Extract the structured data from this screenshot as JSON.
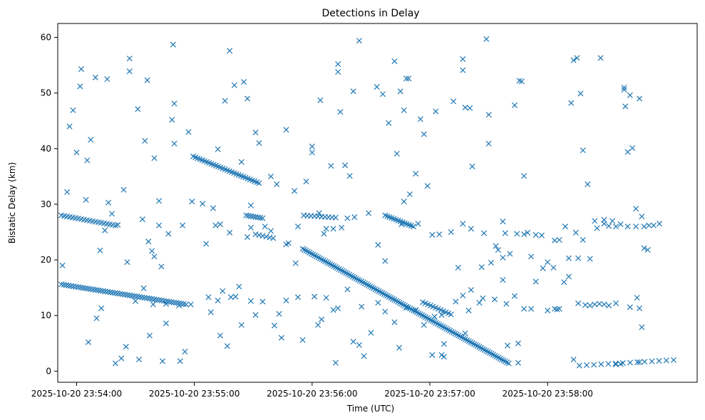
{
  "chart_data": {
    "type": "scatter",
    "title": "Detections in Delay",
    "xlabel": "Time (UTC)",
    "ylabel": "Bistatic Delay (km)",
    "marker": "x",
    "color": "#1f77b4",
    "grid": false,
    "legend": "none",
    "xlim": [
      -0.16,
      5.27
    ],
    "ylim": [
      -2,
      62.5
    ],
    "x_ticks": [
      {
        "value": 0,
        "label": "2025-10-20 23:54:00"
      },
      {
        "value": 1,
        "label": "2025-10-20 23:55:00"
      },
      {
        "value": 2,
        "label": "2025-10-20 23:56:00"
      },
      {
        "value": 3,
        "label": "2025-10-20 23:57:00"
      },
      {
        "value": 4,
        "label": "2025-10-20 23:58:00"
      }
    ],
    "y_ticks": [
      0,
      10,
      20,
      30,
      40,
      50,
      60
    ],
    "x_unit_note": "minutes after 2025-10-20 23:54:00 UTC",
    "tracks": [
      {
        "x0": -0.13,
        "y0": 15.6,
        "x1": 0.93,
        "y1": 12.0,
        "n": 52
      },
      {
        "x0": -0.13,
        "y0": 28.0,
        "x1": 0.33,
        "y1": 26.2,
        "n": 20
      },
      {
        "x0": 0.99,
        "y0": 38.6,
        "x1": 1.55,
        "y1": 33.8,
        "n": 30
      },
      {
        "x0": 1.92,
        "y0": 22.0,
        "x1": 3.67,
        "y1": 1.4,
        "n": 120
      },
      {
        "x0": 2.62,
        "y0": 28.0,
        "x1": 2.86,
        "y1": 26.0,
        "n": 14
      },
      {
        "x0": 1.44,
        "y0": 28.0,
        "x1": 1.58,
        "y1": 27.5,
        "n": 8
      },
      {
        "x0": 1.52,
        "y0": 24.6,
        "x1": 1.67,
        "y1": 23.9,
        "n": 6
      },
      {
        "x0": 2.94,
        "y0": 12.4,
        "x1": 3.18,
        "y1": 10.2,
        "n": 12
      },
      {
        "x0": 1.93,
        "y0": 28.0,
        "x1": 2.2,
        "y1": 27.6,
        "n": 10
      },
      {
        "x0": 4.27,
        "y0": 1.0,
        "x1": 5.07,
        "y1": 2.0,
        "n": 14
      }
    ],
    "scatter_points": [
      [
        -0.12,
        19.0
      ],
      [
        -0.08,
        32.2
      ],
      [
        -0.06,
        44.0
      ],
      [
        -0.03,
        46.9
      ],
      [
        0.0,
        39.3
      ],
      [
        0.03,
        51.2
      ],
      [
        0.04,
        54.3
      ],
      [
        0.08,
        30.8
      ],
      [
        0.09,
        37.9
      ],
      [
        0.12,
        41.6
      ],
      [
        0.16,
        52.8
      ],
      [
        0.2,
        21.7
      ],
      [
        0.24,
        25.3
      ],
      [
        0.26,
        52.5
      ],
      [
        0.27,
        30.3
      ],
      [
        0.3,
        28.3
      ],
      [
        0.35,
        26.3
      ],
      [
        0.4,
        32.6
      ],
      [
        0.43,
        19.6
      ],
      [
        0.45,
        56.2
      ],
      [
        0.45,
        53.9
      ],
      [
        0.52,
        47.1
      ],
      [
        0.58,
        41.4
      ],
      [
        0.6,
        52.3
      ],
      [
        0.61,
        23.3
      ],
      [
        0.62,
        6.4
      ],
      [
        0.64,
        21.6
      ],
      [
        0.66,
        38.3
      ],
      [
        0.7,
        30.6
      ],
      [
        0.72,
        18.8
      ],
      [
        0.76,
        8.6
      ],
      [
        0.81,
        45.2
      ],
      [
        0.82,
        58.7
      ],
      [
        0.83,
        48.1
      ],
      [
        0.83,
        40.9
      ],
      [
        0.9,
        26.2
      ],
      [
        0.92,
        3.5
      ],
      [
        0.95,
        43.0
      ],
      [
        0.98,
        30.5
      ],
      [
        1.07,
        30.1
      ],
      [
        1.1,
        22.9
      ],
      [
        1.12,
        13.3
      ],
      [
        1.16,
        29.3
      ],
      [
        1.18,
        26.2
      ],
      [
        1.2,
        39.9
      ],
      [
        1.26,
        48.6
      ],
      [
        1.3,
        57.6
      ],
      [
        1.34,
        51.4
      ],
      [
        1.35,
        13.4
      ],
      [
        1.4,
        37.6
      ],
      [
        1.42,
        52.0
      ],
      [
        1.45,
        49.0
      ],
      [
        1.48,
        29.8
      ],
      [
        1.52,
        42.9
      ],
      [
        1.55,
        41.0
      ],
      [
        1.6,
        26.0
      ],
      [
        1.65,
        35.0
      ],
      [
        1.7,
        33.6
      ],
      [
        1.74,
        6.0
      ],
      [
        1.78,
        43.4
      ],
      [
        1.8,
        23.0
      ],
      [
        1.85,
        32.4
      ],
      [
        1.88,
        26.0
      ],
      [
        1.95,
        34.1
      ],
      [
        2.0,
        40.4
      ],
      [
        2.0,
        39.3
      ],
      [
        2.07,
        48.7
      ],
      [
        2.12,
        25.6
      ],
      [
        2.16,
        36.9
      ],
      [
        2.18,
        11.0
      ],
      [
        2.22,
        55.2
      ],
      [
        2.22,
        53.8
      ],
      [
        2.24,
        46.6
      ],
      [
        2.28,
        37.0
      ],
      [
        2.32,
        35.1
      ],
      [
        2.35,
        50.3
      ],
      [
        2.4,
        59.4
      ],
      [
        2.48,
        28.4
      ],
      [
        2.55,
        51.1
      ],
      [
        2.6,
        49.8
      ],
      [
        2.65,
        44.6
      ],
      [
        2.7,
        55.7
      ],
      [
        2.72,
        39.1
      ],
      [
        2.75,
        50.3
      ],
      [
        2.78,
        46.9
      ],
      [
        2.8,
        52.6
      ],
      [
        2.82,
        52.6
      ],
      [
        2.88,
        35.5
      ],
      [
        2.92,
        45.3
      ],
      [
        2.95,
        42.6
      ],
      [
        2.98,
        33.3
      ],
      [
        3.05,
        46.7
      ],
      [
        3.12,
        4.9
      ],
      [
        3.2,
        48.5
      ],
      [
        3.28,
        56.1
      ],
      [
        3.28,
        54.1
      ],
      [
        3.3,
        47.4
      ],
      [
        3.34,
        47.3
      ],
      [
        3.36,
        36.8
      ],
      [
        3.48,
        59.7
      ],
      [
        3.5,
        46.1
      ],
      [
        3.5,
        40.9
      ],
      [
        3.56,
        22.5
      ],
      [
        3.62,
        26.9
      ],
      [
        3.72,
        47.8
      ],
      [
        3.76,
        52.2
      ],
      [
        3.78,
        52.1
      ],
      [
        3.8,
        35.1
      ],
      [
        3.83,
        24.9
      ],
      [
        3.9,
        16.1
      ],
      [
        3.95,
        24.4
      ],
      [
        4.0,
        19.6
      ],
      [
        4.05,
        18.6
      ],
      [
        4.1,
        11.2
      ],
      [
        4.15,
        26.0
      ],
      [
        4.2,
        48.2
      ],
      [
        4.22,
        55.9
      ],
      [
        4.25,
        56.3
      ],
      [
        4.28,
        49.9
      ],
      [
        4.3,
        39.7
      ],
      [
        4.34,
        33.6
      ],
      [
        4.36,
        20.2
      ],
      [
        4.4,
        27.0
      ],
      [
        4.45,
        56.3
      ],
      [
        4.48,
        27.2
      ],
      [
        4.52,
        26.1
      ],
      [
        4.65,
        51.0
      ],
      [
        4.65,
        50.6
      ],
      [
        4.66,
        47.6
      ],
      [
        4.68,
        39.4
      ],
      [
        4.7,
        49.6
      ],
      [
        4.72,
        40.1
      ],
      [
        4.75,
        29.2
      ],
      [
        4.78,
        49.0
      ],
      [
        4.8,
        27.8
      ],
      [
        0.1,
        5.2
      ],
      [
        0.17,
        9.5
      ],
      [
        0.21,
        11.3
      ],
      [
        0.33,
        1.4
      ],
      [
        0.38,
        2.3
      ],
      [
        0.5,
        12.6
      ],
      [
        0.57,
        14.9
      ],
      [
        0.65,
        12.0
      ],
      [
        0.73,
        1.8
      ],
      [
        0.76,
        12.1
      ],
      [
        0.87,
        11.8
      ],
      [
        0.97,
        12.0
      ],
      [
        1.14,
        10.6
      ],
      [
        1.2,
        12.7
      ],
      [
        1.22,
        6.4
      ],
      [
        1.24,
        14.4
      ],
      [
        1.31,
        13.3
      ],
      [
        1.38,
        15.2
      ],
      [
        1.4,
        8.3
      ],
      [
        1.48,
        12.6
      ],
      [
        1.52,
        10.1
      ],
      [
        1.58,
        12.5
      ],
      [
        1.68,
        8.2
      ],
      [
        1.72,
        10.3
      ],
      [
        1.78,
        12.7
      ],
      [
        1.88,
        13.3
      ],
      [
        1.92,
        5.6
      ],
      [
        2.02,
        13.4
      ],
      [
        2.05,
        8.3
      ],
      [
        2.08,
        9.3
      ],
      [
        2.12,
        13.2
      ],
      [
        2.22,
        11.3
      ],
      [
        2.3,
        14.7
      ],
      [
        2.35,
        5.3
      ],
      [
        2.4,
        4.7
      ],
      [
        2.42,
        11.6
      ],
      [
        2.5,
        6.9
      ],
      [
        2.56,
        12.3
      ],
      [
        2.62,
        10.7
      ],
      [
        2.7,
        8.8
      ],
      [
        2.74,
        4.2
      ],
      [
        2.8,
        11.4
      ],
      [
        2.88,
        11.0
      ],
      [
        2.95,
        8.3
      ],
      [
        3.02,
        2.9
      ],
      [
        3.04,
        9.8
      ],
      [
        3.1,
        10.1
      ],
      [
        3.22,
        12.5
      ],
      [
        3.28,
        13.6
      ],
      [
        3.33,
        10.9
      ],
      [
        3.35,
        14.6
      ],
      [
        3.42,
        12.3
      ],
      [
        3.45,
        13.1
      ],
      [
        3.55,
        12.9
      ],
      [
        3.62,
        16.4
      ],
      [
        3.65,
        12.1
      ],
      [
        3.72,
        13.5
      ],
      [
        3.8,
        11.2
      ],
      [
        3.86,
        11.2
      ],
      [
        4.0,
        10.9
      ],
      [
        4.06,
        11.2
      ],
      [
        4.08,
        11.1
      ],
      [
        4.18,
        17.0
      ],
      [
        4.22,
        2.1
      ],
      [
        4.26,
        12.2
      ],
      [
        4.32,
        11.9
      ],
      [
        4.36,
        11.8
      ],
      [
        4.4,
        12.0
      ],
      [
        4.44,
        12.1
      ],
      [
        4.48,
        12.0
      ],
      [
        4.52,
        11.8
      ],
      [
        4.58,
        12.2
      ],
      [
        4.7,
        11.5
      ],
      [
        4.76,
        13.2
      ],
      [
        4.78,
        11.3
      ],
      [
        4.8,
        7.9
      ],
      [
        4.82,
        22.1
      ],
      [
        4.85,
        21.8
      ],
      [
        0.56,
        27.3
      ],
      [
        0.66,
        20.6
      ],
      [
        0.7,
        26.2
      ],
      [
        0.78,
        24.7
      ],
      [
        1.22,
        26.4
      ],
      [
        1.3,
        24.9
      ],
      [
        1.45,
        24.1
      ],
      [
        1.48,
        25.8
      ],
      [
        1.65,
        25.2
      ],
      [
        1.78,
        22.8
      ],
      [
        1.86,
        19.4
      ],
      [
        2.06,
        28.4
      ],
      [
        2.1,
        24.7
      ],
      [
        2.18,
        25.6
      ],
      [
        2.25,
        25.8
      ],
      [
        2.3,
        27.5
      ],
      [
        2.36,
        27.7
      ],
      [
        2.56,
        22.7
      ],
      [
        2.62,
        19.8
      ],
      [
        2.76,
        26.4
      ],
      [
        2.78,
        30.5
      ],
      [
        2.83,
        31.8
      ],
      [
        2.9,
        26.5
      ],
      [
        3.02,
        24.5
      ],
      [
        3.08,
        24.6
      ],
      [
        3.18,
        25.0
      ],
      [
        3.24,
        18.6
      ],
      [
        3.28,
        26.5
      ],
      [
        3.35,
        25.6
      ],
      [
        3.46,
        24.8
      ],
      [
        3.52,
        19.5
      ],
      [
        3.58,
        21.8
      ],
      [
        3.62,
        20.4
      ],
      [
        3.64,
        24.8
      ],
      [
        3.68,
        21.1
      ],
      [
        3.74,
        24.7
      ],
      [
        3.8,
        24.6
      ],
      [
        3.86,
        20.6
      ],
      [
        3.9,
        24.5
      ],
      [
        3.96,
        18.5
      ],
      [
        4.06,
        23.5
      ],
      [
        4.1,
        23.6
      ],
      [
        4.14,
        16.0
      ],
      [
        4.18,
        20.3
      ],
      [
        4.24,
        24.9
      ],
      [
        4.26,
        20.3
      ],
      [
        4.3,
        23.6
      ],
      [
        4.42,
        25.7
      ],
      [
        4.48,
        26.5
      ],
      [
        4.55,
        27.0
      ],
      [
        4.58,
        26.0
      ],
      [
        4.62,
        26.4
      ],
      [
        4.68,
        26.0
      ],
      [
        4.75,
        26.0
      ],
      [
        4.82,
        26.0
      ],
      [
        4.86,
        26.2
      ],
      [
        4.9,
        26.2
      ],
      [
        4.95,
        26.5
      ],
      [
        0.42,
        4.4
      ],
      [
        0.53,
        2.1
      ],
      [
        0.88,
        1.8
      ],
      [
        2.2,
        1.5
      ],
      [
        3.75,
        1.5
      ],
      [
        4.78,
        1.6
      ],
      [
        4.58,
        1.2
      ],
      [
        4.62,
        1.3
      ],
      [
        1.28,
        4.5
      ],
      [
        2.44,
        2.7
      ],
      [
        3.1,
        2.9
      ],
      [
        3.12,
        2.6
      ],
      [
        3.3,
        6.8
      ],
      [
        3.44,
        18.7
      ],
      [
        3.66,
        4.6
      ],
      [
        3.75,
        5.0
      ]
    ]
  }
}
